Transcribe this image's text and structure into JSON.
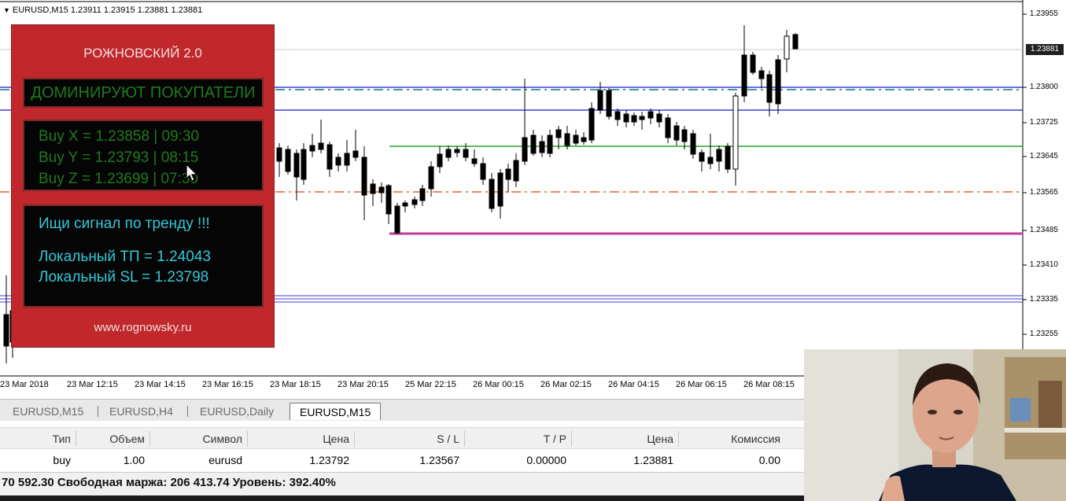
{
  "chart": {
    "header": "EURUSD,M15  1.23911 1.23915 1.23881 1.23881",
    "current_price": "1.23881",
    "price_axis": [
      "1.23955",
      "1.23800",
      "1.23725",
      "1.23645",
      "1.23565",
      "1.23485",
      "1.23410",
      "1.23335",
      "1.23255"
    ],
    "time_axis": [
      "23 Mar 2018",
      "23 Mar 12:15",
      "23 Mar 14:15",
      "23 Mar 16:15",
      "23 Mar 18:15",
      "23 Mar 20:15",
      "25 Mar 22:15",
      "26 Mar 00:15",
      "26 Mar 02:15",
      "26 Mar 04:15",
      "26 Mar 06:15",
      "26 Mar 08:15"
    ],
    "colors": {
      "blue_line": "#3d3dd6",
      "green_line": "#28a428",
      "magenta_line": "#c0399a",
      "orange_dash": "#ec8a5e",
      "teal_dash": "#4b9aa0",
      "panel_bg": "#c0282b"
    }
  },
  "panel": {
    "title": "РОЖНОВСКИЙ 2.0",
    "dominate": "ДОМИНИРУЮТ ПОКУПАТЕЛИ",
    "levels": [
      "Buy  X = 1.23858  |  09:30",
      "Buy  Y = 1.23793  |  08:15",
      "Buy  Z = 1.23699  |  07:30"
    ],
    "signal": "Ищи сигнал по тренду !!!",
    "tp": "Локальный ТП = 1.24043",
    "sl": "Локальный SL = 1.23798",
    "site": "www.rognowsky.ru"
  },
  "tabs": [
    {
      "label": "EURUSD,M15",
      "active": false
    },
    {
      "label": "EURUSD,H4",
      "active": false
    },
    {
      "label": "EURUSD,Daily",
      "active": false
    },
    {
      "label": "EURUSD,M15",
      "active": true
    }
  ],
  "table": {
    "headers": [
      "Тип",
      "Объем",
      "Символ",
      "Цена",
      "S / L",
      "T / P",
      "Цена",
      "Комиссия"
    ],
    "row": [
      "buy",
      "1.00",
      "eurusd",
      "1.23792",
      "1.23567",
      "0.00000",
      "1.23881",
      "0.00"
    ]
  },
  "status": "70 592.30  Свободная маржа: 206 413.74  Уровень: 392.40%"
}
